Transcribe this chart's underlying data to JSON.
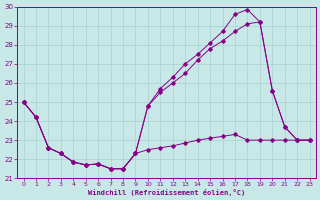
{
  "xlabel": "Windchill (Refroidissement éolien,°C)",
  "bg_color": "#c8e8e8",
  "grid_color": "#a8d0d0",
  "line_color": "#880088",
  "xlim": [
    -0.5,
    23.5
  ],
  "ylim": [
    21,
    30
  ],
  "xticks": [
    0,
    1,
    2,
    3,
    4,
    5,
    6,
    7,
    8,
    9,
    10,
    11,
    12,
    13,
    14,
    15,
    16,
    17,
    18,
    19,
    20,
    21,
    22,
    23
  ],
  "yticks": [
    21,
    22,
    23,
    24,
    25,
    26,
    27,
    28,
    29,
    30
  ],
  "line1_x": [
    0,
    1,
    2,
    3,
    4,
    5,
    6,
    7,
    8,
    9,
    10,
    11,
    12,
    13,
    14,
    15,
    16,
    17,
    18,
    19,
    20,
    21,
    22,
    23
  ],
  "line1_y": [
    25.0,
    24.2,
    22.6,
    22.3,
    21.85,
    21.7,
    21.75,
    21.5,
    21.5,
    22.3,
    22.5,
    22.6,
    22.7,
    22.85,
    23.0,
    23.1,
    23.2,
    23.3,
    23.0,
    23.0,
    23.0,
    23.0,
    23.0,
    23.0
  ],
  "line2_x": [
    0,
    1,
    2,
    3,
    4,
    5,
    6,
    7,
    8,
    9,
    10,
    11,
    12,
    13,
    14,
    15,
    16,
    17,
    18,
    19,
    20,
    21,
    22,
    23
  ],
  "line2_y": [
    25.0,
    24.2,
    22.6,
    22.3,
    21.85,
    21.7,
    21.75,
    21.5,
    21.5,
    22.3,
    24.8,
    25.5,
    26.0,
    26.5,
    27.2,
    27.8,
    28.2,
    28.7,
    29.1,
    29.2,
    25.6,
    23.7,
    23.0,
    23.0
  ],
  "line3_x": [
    0,
    1,
    2,
    3,
    4,
    5,
    6,
    7,
    8,
    9,
    10,
    11,
    12,
    13,
    14,
    15,
    16,
    17,
    18,
    19,
    20,
    21,
    22,
    23
  ],
  "line3_y": [
    25.0,
    24.2,
    22.6,
    22.3,
    21.85,
    21.7,
    21.75,
    21.5,
    21.5,
    22.3,
    24.8,
    25.7,
    26.3,
    27.0,
    27.5,
    28.1,
    28.7,
    29.6,
    29.85,
    29.2,
    25.6,
    23.7,
    23.0,
    23.0
  ]
}
